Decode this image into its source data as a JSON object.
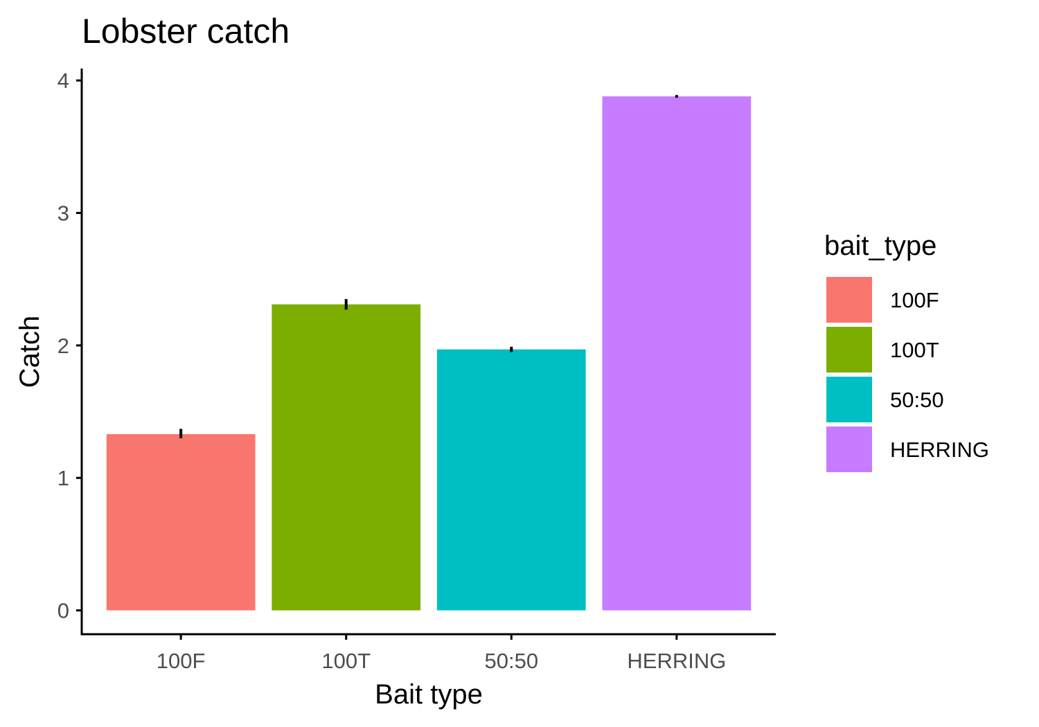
{
  "chart_data": {
    "type": "bar",
    "title": "Lobster catch",
    "xlabel": "Bait type",
    "ylabel": "Catch",
    "categories": [
      "100F",
      "100T",
      "50:50",
      "HERRING"
    ],
    "values": [
      1.33,
      2.31,
      1.97,
      3.88
    ],
    "error_bars": [
      {
        "low": 1.3,
        "high": 1.37
      },
      {
        "low": 2.27,
        "high": 2.35
      },
      {
        "low": 1.95,
        "high": 1.99
      },
      {
        "low": 3.87,
        "high": 3.89
      }
    ],
    "colors": [
      "#F8766D",
      "#7CAE00",
      "#00BFC4",
      "#C77CFF"
    ],
    "ylim": [
      -0.18,
      4.09
    ],
    "yticks": [
      0,
      1,
      2,
      3,
      4
    ],
    "grid": false,
    "legend": {
      "title": "bait_type",
      "position": "right",
      "entries": [
        "100F",
        "100T",
        "50:50",
        "HERRING"
      ]
    }
  }
}
